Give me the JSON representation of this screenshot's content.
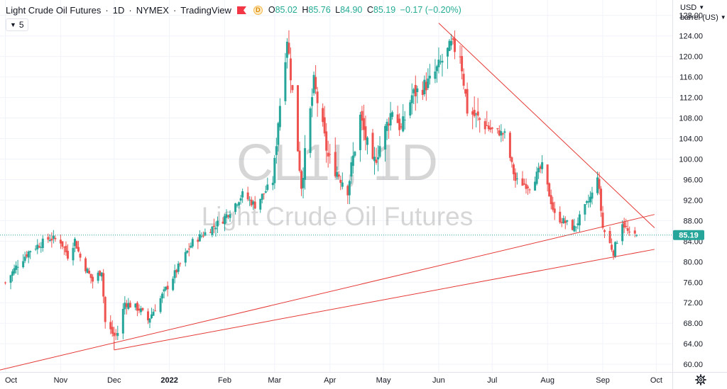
{
  "header": {
    "title": "Light Crude Oil Futures",
    "interval": "1D",
    "exchange": "NYMEX",
    "source": "TradingView",
    "badge": "D",
    "o_label": "O",
    "o_value": "85.02",
    "h_label": "H",
    "h_value": "85.76",
    "l_label": "L",
    "l_value": "84.90",
    "c_label": "C",
    "c_value": "85.19",
    "change": "−0.17 (−0.20%)",
    "indicator_count": "5"
  },
  "price_axis": {
    "currency": "USD",
    "unit": "barrel (US)",
    "last_price_label": "85.19"
  },
  "watermark": {
    "symbol": "CL1!, 1D",
    "name": "Light Crude Oil Futures"
  },
  "colors": {
    "up": "#26a69a",
    "down": "#ef5350",
    "trendline": "#e53935",
    "last_price": "#26a69a",
    "grid": "#f0f3fa"
  },
  "icons": [
    "chevron-down-icon",
    "flag-icon",
    "gear-icon"
  ],
  "chart_data": {
    "type": "candlestick",
    "symbol": "CL1!",
    "xlabels": [
      "Oct",
      "Nov",
      "Dec",
      "2022",
      "Feb",
      "Mar",
      "Apr",
      "May",
      "Jun",
      "Jul",
      "Aug",
      "Sep",
      "Oct"
    ],
    "yticks": [
      "60.00",
      "64.00",
      "68.00",
      "72.00",
      "76.00",
      "80.00",
      "84.00",
      "88.00",
      "92.00",
      "96.00",
      "100.00",
      "104.00",
      "108.00",
      "112.00",
      "116.00",
      "120.00",
      "124.00",
      "128.00"
    ],
    "ylim": [
      58.5,
      131
    ],
    "last_price": 85.19,
    "anchors": [
      {
        "date": "2021-10-01",
        "close": 75.9
      },
      {
        "date": "2021-10-08",
        "close": 79.5
      },
      {
        "date": "2021-10-15",
        "close": 82.3
      },
      {
        "date": "2021-10-26",
        "close": 84.6
      },
      {
        "date": "2021-11-01",
        "close": 84.0
      },
      {
        "date": "2021-11-05",
        "close": 81.2
      },
      {
        "date": "2021-11-09",
        "close": 84.2
      },
      {
        "date": "2021-11-12",
        "close": 80.8
      },
      {
        "date": "2021-11-19",
        "close": 76.2
      },
      {
        "date": "2021-11-24",
        "close": 78.4
      },
      {
        "date": "2021-11-26",
        "close": 68.2
      },
      {
        "date": "2021-12-01",
        "close": 65.5
      },
      {
        "date": "2021-12-03",
        "close": 66.2
      },
      {
        "date": "2021-12-07",
        "close": 72.0
      },
      {
        "date": "2021-12-15",
        "close": 70.8
      },
      {
        "date": "2021-12-20",
        "close": 68.6
      },
      {
        "date": "2021-12-31",
        "close": 75.2
      },
      {
        "date": "2022-01-14",
        "close": 83.8
      },
      {
        "date": "2022-01-31",
        "close": 88.2
      },
      {
        "date": "2022-02-11",
        "close": 93.1
      },
      {
        "date": "2022-02-18",
        "close": 91.0
      },
      {
        "date": "2022-02-28",
        "close": 95.7
      },
      {
        "date": "2022-03-03",
        "close": 107.5
      },
      {
        "date": "2022-03-08",
        "close": 123.7
      },
      {
        "date": "2022-03-16",
        "close": 95.0
      },
      {
        "date": "2022-03-23",
        "close": 114.9
      },
      {
        "date": "2022-03-31",
        "close": 100.3
      },
      {
        "date": "2022-04-11",
        "close": 94.3
      },
      {
        "date": "2022-04-18",
        "close": 108.2
      },
      {
        "date": "2022-04-25",
        "close": 98.5
      },
      {
        "date": "2022-05-06",
        "close": 109.8
      },
      {
        "date": "2022-05-11",
        "close": 105.7
      },
      {
        "date": "2022-05-17",
        "close": 112.4
      },
      {
        "date": "2022-05-27",
        "close": 115.1
      },
      {
        "date": "2022-06-08",
        "close": 122.1
      },
      {
        "date": "2022-06-13",
        "close": 120.7
      },
      {
        "date": "2022-06-17",
        "close": 109.6
      },
      {
        "date": "2022-06-24",
        "close": 107.6
      },
      {
        "date": "2022-06-30",
        "close": 105.8
      },
      {
        "date": "2022-07-08",
        "close": 104.8
      },
      {
        "date": "2022-07-14",
        "close": 95.8
      },
      {
        "date": "2022-07-22",
        "close": 94.7
      },
      {
        "date": "2022-07-29",
        "close": 98.6
      },
      {
        "date": "2022-08-05",
        "close": 89.0
      },
      {
        "date": "2022-08-16",
        "close": 86.5
      },
      {
        "date": "2022-08-26",
        "close": 93.1
      },
      {
        "date": "2022-08-29",
        "close": 97.0
      },
      {
        "date": "2022-09-01",
        "close": 86.6
      },
      {
        "date": "2022-09-07",
        "close": 81.9
      },
      {
        "date": "2022-09-12",
        "close": 87.8
      },
      {
        "date": "2022-09-16",
        "close": 85.1
      },
      {
        "date": "2022-09-20",
        "close": 85.19
      }
    ],
    "trendlines": [
      {
        "from": {
          "date": "2021-09-28",
          "price": 58.9
        },
        "to": {
          "date": "2022-09-30",
          "price": 89.2
        }
      },
      {
        "from": {
          "date": "2021-12-01",
          "price": 62.8
        },
        "to": {
          "date": "2022-09-30",
          "price": 82.4
        }
      },
      {
        "from": {
          "date": "2022-06-01",
          "price": 126.5
        },
        "to": {
          "date": "2022-09-30",
          "price": 86.6
        }
      }
    ]
  }
}
